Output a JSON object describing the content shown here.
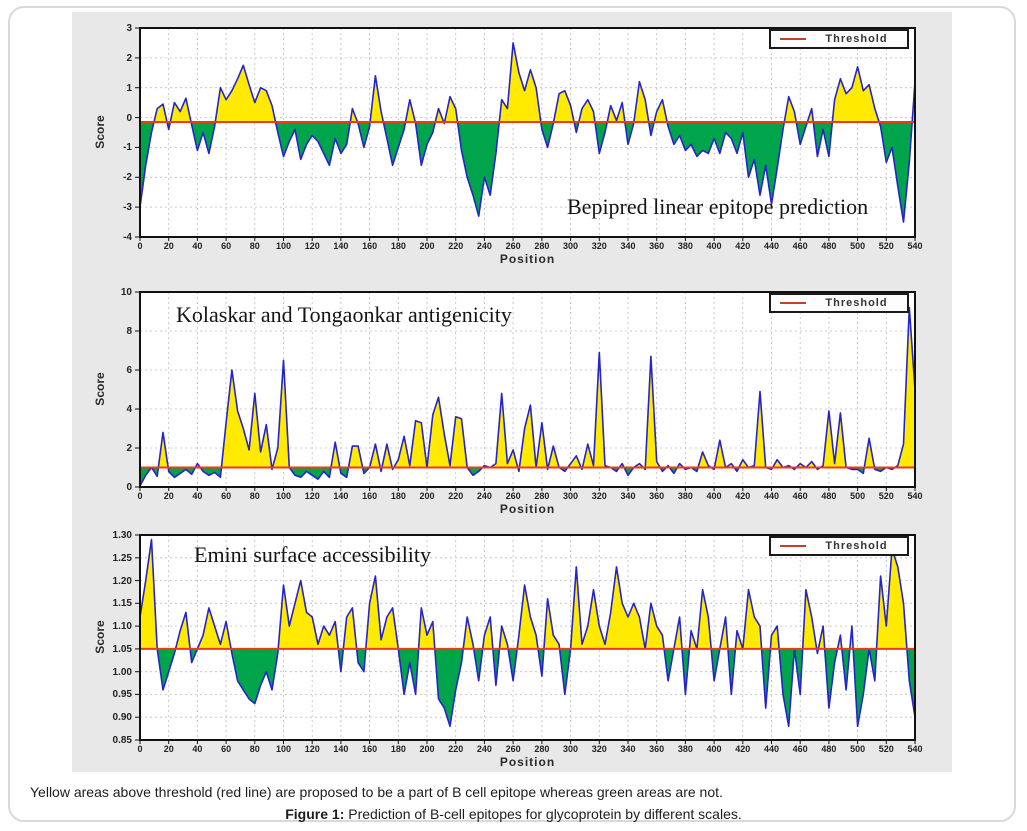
{
  "figure": {
    "caption_line1": "Yellow areas above threshold (red line) are proposed to be a part of B cell epitope whereas green areas are not.",
    "caption_figure_label": "Figure 1:",
    "caption_figure_text": " Prediction of B-cell epitopes for glycoprotein by different scales."
  },
  "colors": {
    "panel_background": "#e8e8e8",
    "plot_background": "#ffffff",
    "grid": "#bcbcc4",
    "line": "#2424cc",
    "fill_above_threshold": "#ffea00",
    "fill_below_threshold": "#00a44a",
    "threshold_line": "#ee3b14",
    "legend_swatch": "#c2402a",
    "axis": "#111111"
  },
  "chart_data": [
    {
      "type": "area",
      "title": "Bepipred linear epitope prediction",
      "title_placement": "bottom-right",
      "xlabel": "Position",
      "ylabel": "Score",
      "legend_label": "Threshold",
      "legend_position": "top-right",
      "grid": true,
      "xlim": [
        0,
        540
      ],
      "xticks": [
        0,
        20,
        40,
        60,
        80,
        100,
        120,
        140,
        160,
        180,
        200,
        220,
        240,
        260,
        280,
        300,
        320,
        340,
        360,
        380,
        400,
        420,
        440,
        460,
        480,
        500,
        520,
        540
      ],
      "ylim": [
        -4,
        3
      ],
      "ytick_labels": [
        "3",
        "2",
        "1",
        "0",
        "-1",
        "-2",
        "-3",
        "-4"
      ],
      "threshold": -0.15,
      "x_start": 0,
      "x_step": 4,
      "series": [
        {
          "name": "score",
          "values": [
            -3.0,
            -1.6,
            -0.5,
            0.3,
            0.45,
            -0.4,
            0.5,
            0.2,
            0.65,
            -0.25,
            -1.1,
            -0.5,
            -1.2,
            -0.3,
            1.0,
            0.6,
            0.9,
            1.3,
            1.75,
            1.1,
            0.5,
            1.0,
            0.9,
            0.4,
            -0.5,
            -1.3,
            -0.8,
            -0.4,
            -1.4,
            -0.9,
            -0.6,
            -0.8,
            -1.2,
            -1.6,
            -0.7,
            -1.2,
            -0.9,
            0.3,
            -0.2,
            -1.0,
            -0.3,
            1.4,
            0.2,
            -0.7,
            -1.6,
            -1.0,
            -0.4,
            0.6,
            -0.2,
            -1.6,
            -0.9,
            -0.5,
            0.3,
            -0.2,
            0.7,
            0.3,
            -1.1,
            -2.0,
            -2.6,
            -3.3,
            -2.0,
            -2.6,
            -1.2,
            0.6,
            0.3,
            2.5,
            1.5,
            0.9,
            1.6,
            1.0,
            -0.4,
            -1.0,
            -0.2,
            0.8,
            0.9,
            0.4,
            -0.5,
            0.3,
            0.6,
            0.2,
            -1.2,
            -0.5,
            0.4,
            -0.1,
            0.5,
            -0.9,
            -0.2,
            1.2,
            0.6,
            -0.6,
            0.2,
            0.6,
            -0.3,
            -0.9,
            -0.6,
            -1.1,
            -0.9,
            -1.3,
            -1.1,
            -1.2,
            -0.7,
            -1.2,
            -0.5,
            -0.7,
            -1.2,
            -0.5,
            -2.0,
            -1.4,
            -2.6,
            -1.6,
            -2.9,
            -1.7,
            -0.4,
            0.7,
            0.2,
            -0.9,
            -0.3,
            0.3,
            -1.3,
            -0.4,
            -1.3,
            0.6,
            1.3,
            0.8,
            1.0,
            1.7,
            0.9,
            1.1,
            0.3,
            -0.3,
            -1.5,
            -1.0,
            -2.3,
            -3.5,
            -1.5,
            1.2
          ]
        }
      ]
    },
    {
      "type": "area",
      "title": "Kolaskar and Tongaonkar antigenicity",
      "title_placement": "top-left",
      "xlabel": "Position",
      "ylabel": "Score",
      "legend_label": "Threshold",
      "legend_position": "top-right",
      "grid": true,
      "xlim": [
        0,
        540
      ],
      "xticks": [
        0,
        20,
        40,
        60,
        80,
        100,
        120,
        140,
        160,
        180,
        200,
        220,
        240,
        260,
        280,
        300,
        320,
        340,
        360,
        380,
        400,
        420,
        440,
        460,
        480,
        500,
        520,
        540
      ],
      "ylim": [
        0,
        10
      ],
      "ytick_labels": [
        "10",
        "8",
        "6",
        "4",
        "2",
        "0"
      ],
      "threshold": 1.0,
      "x_start": 0,
      "x_step": 4,
      "series": [
        {
          "name": "score",
          "values": [
            0.05,
            0.6,
            1.0,
            0.55,
            2.8,
            0.8,
            0.5,
            0.7,
            0.9,
            0.65,
            1.2,
            0.8,
            0.6,
            0.75,
            0.5,
            3.3,
            6.0,
            3.9,
            3.0,
            1.9,
            4.8,
            1.8,
            3.2,
            0.9,
            2.0,
            6.5,
            1.0,
            0.6,
            0.5,
            0.8,
            0.6,
            0.4,
            0.8,
            0.5,
            2.3,
            0.7,
            0.5,
            2.1,
            2.1,
            0.7,
            1.0,
            2.2,
            0.8,
            2.2,
            0.9,
            1.4,
            2.6,
            1.1,
            3.4,
            3.3,
            1.0,
            3.7,
            4.6,
            2.7,
            1.1,
            3.6,
            3.5,
            1.0,
            0.6,
            0.8,
            1.1,
            1.0,
            1.2,
            4.8,
            1.2,
            1.9,
            0.8,
            3.0,
            4.2,
            1.0,
            3.3,
            0.9,
            2.1,
            1.0,
            0.8,
            1.2,
            1.6,
            0.9,
            2.2,
            1.1,
            6.9,
            1.1,
            1.0,
            0.8,
            1.2,
            0.6,
            1.0,
            1.2,
            0.9,
            6.7,
            1.3,
            0.8,
            1.1,
            0.7,
            1.2,
            0.9,
            1.0,
            0.8,
            1.8,
            1.1,
            0.9,
            2.4,
            1.0,
            1.2,
            0.8,
            1.4,
            1.0,
            1.1,
            4.9,
            1.0,
            0.9,
            1.4,
            1.0,
            1.1,
            0.9,
            1.2,
            1.0,
            1.3,
            0.9,
            1.1,
            3.9,
            1.2,
            3.8,
            1.0,
            0.9,
            0.9,
            0.7,
            2.5,
            0.9,
            0.8,
            1.0,
            0.9,
            1.1,
            2.2,
            9.2,
            5.0
          ]
        }
      ]
    },
    {
      "type": "area",
      "title": "Emini surface accessibility",
      "title_placement": "top-left",
      "xlabel": "Position",
      "ylabel": "Score",
      "legend_label": "Threshold",
      "legend_position": "top-right",
      "grid": true,
      "xlim": [
        0,
        540
      ],
      "xticks": [
        0,
        20,
        40,
        60,
        80,
        100,
        120,
        140,
        160,
        180,
        200,
        220,
        240,
        260,
        280,
        300,
        320,
        340,
        360,
        380,
        400,
        420,
        440,
        460,
        480,
        500,
        520,
        540
      ],
      "ylim": [
        0.85,
        1.3
      ],
      "ytick_labels": [
        "1.30",
        "1.25",
        "1.20",
        "1.15",
        "1.10",
        "1.05",
        "1.00",
        "0.95",
        "0.90",
        "0.85"
      ],
      "threshold": 1.05,
      "x_start": 0,
      "x_step": 4,
      "series": [
        {
          "name": "score",
          "values": [
            1.12,
            1.2,
            1.29,
            1.05,
            0.96,
            1.0,
            1.04,
            1.09,
            1.13,
            1.02,
            1.05,
            1.08,
            1.14,
            1.1,
            1.06,
            1.11,
            1.04,
            0.98,
            0.96,
            0.94,
            0.93,
            0.97,
            1.0,
            0.96,
            1.04,
            1.19,
            1.1,
            1.15,
            1.2,
            1.13,
            1.12,
            1.06,
            1.1,
            1.08,
            1.11,
            1.0,
            1.12,
            1.14,
            1.02,
            1.0,
            1.15,
            1.21,
            1.07,
            1.12,
            1.14,
            1.05,
            0.95,
            1.02,
            0.95,
            1.14,
            1.08,
            1.11,
            0.94,
            0.92,
            0.88,
            0.96,
            1.02,
            1.12,
            1.06,
            0.98,
            1.08,
            1.12,
            0.97,
            1.1,
            1.06,
            0.98,
            1.08,
            1.19,
            1.12,
            1.08,
            0.99,
            1.16,
            1.08,
            1.06,
            0.95,
            1.05,
            1.23,
            1.06,
            1.1,
            1.18,
            1.1,
            1.06,
            1.13,
            1.23,
            1.15,
            1.12,
            1.15,
            1.12,
            1.05,
            1.15,
            1.1,
            1.08,
            0.98,
            1.05,
            1.12,
            0.95,
            1.09,
            1.05,
            1.18,
            1.12,
            0.98,
            1.05,
            1.12,
            0.95,
            1.09,
            1.05,
            1.18,
            1.12,
            1.1,
            0.92,
            1.08,
            1.1,
            0.95,
            0.88,
            1.05,
            0.95,
            1.18,
            1.12,
            1.04,
            1.1,
            0.92,
            1.02,
            1.08,
            0.96,
            1.1,
            0.88,
            0.95,
            1.05,
            0.98,
            1.21,
            1.1,
            1.27,
            1.23,
            1.15,
            0.98,
            0.9
          ]
        }
      ]
    }
  ]
}
